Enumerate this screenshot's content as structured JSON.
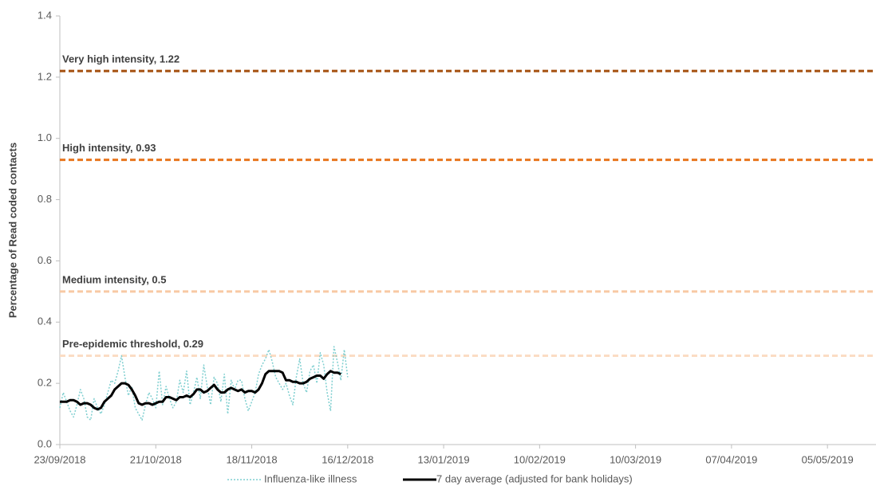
{
  "chart_data": {
    "type": "line",
    "y_label": "Percentage of Read coded contacts",
    "ylim": [
      0,
      1.4
    ],
    "yticks": [
      {
        "value": 0,
        "label": "0.0"
      },
      0.2,
      0.4,
      0.6,
      0.8,
      {
        "value": 1,
        "label": "1.0"
      },
      1.2,
      1.4
    ],
    "xlim": [
      "2018-09-23",
      "2019-05-18"
    ],
    "xticks": [
      {
        "value": "2018-09-23",
        "label": "23/09/2018"
      },
      {
        "value": "2018-10-21",
        "label": "21/10/2018"
      },
      {
        "value": "2018-11-18",
        "label": "18/11/2018"
      },
      {
        "value": "2018-12-16",
        "label": "16/12/2018"
      },
      {
        "value": "2019-01-13",
        "label": "13/01/2019"
      },
      {
        "value": "2019-02-10",
        "label": "10/02/2019"
      },
      {
        "value": "2019-03-10",
        "label": "10/03/2019"
      },
      {
        "value": "2019-04-07",
        "label": "07/04/2019"
      },
      {
        "value": "2019-05-05",
        "label": "05/05/2019"
      }
    ],
    "thresholds": [
      {
        "label": "Very high intensity, 1.22",
        "value": 1.22,
        "color": "#a5500f"
      },
      {
        "label": "High intensity, 0.93",
        "value": 0.93,
        "color": "#e8761e"
      },
      {
        "label": "Medium intensity, 0.5",
        "value": 0.5,
        "color": "#f8c9a4"
      },
      {
        "label": "Pre-epidemic threshold, 0.29",
        "value": 0.29,
        "color": "#fbdcc4"
      }
    ],
    "x": [
      "2018-09-23",
      "2018-09-24",
      "2018-09-25",
      "2018-09-26",
      "2018-09-27",
      "2018-09-28",
      "2018-09-29",
      "2018-09-30",
      "2018-10-01",
      "2018-10-02",
      "2018-10-03",
      "2018-10-04",
      "2018-10-05",
      "2018-10-06",
      "2018-10-07",
      "2018-10-08",
      "2018-10-09",
      "2018-10-10",
      "2018-10-11",
      "2018-10-12",
      "2018-10-13",
      "2018-10-14",
      "2018-10-15",
      "2018-10-16",
      "2018-10-17",
      "2018-10-18",
      "2018-10-19",
      "2018-10-20",
      "2018-10-21",
      "2018-10-22",
      "2018-10-23",
      "2018-10-24",
      "2018-10-25",
      "2018-10-26",
      "2018-10-27",
      "2018-10-28",
      "2018-10-29",
      "2018-10-30",
      "2018-10-31",
      "2018-11-01",
      "2018-11-02",
      "2018-11-03",
      "2018-11-04",
      "2018-11-05",
      "2018-11-06",
      "2018-11-07",
      "2018-11-08",
      "2018-11-09",
      "2018-11-10",
      "2018-11-11",
      "2018-11-12",
      "2018-11-13",
      "2018-11-14",
      "2018-11-15",
      "2018-11-16",
      "2018-11-17",
      "2018-11-18",
      "2018-11-19",
      "2018-11-20",
      "2018-11-21",
      "2018-11-22",
      "2018-11-23",
      "2018-11-24",
      "2018-11-25",
      "2018-11-26",
      "2018-11-27",
      "2018-11-28",
      "2018-11-29",
      "2018-11-30",
      "2018-12-01",
      "2018-12-02",
      "2018-12-03",
      "2018-12-04",
      "2018-12-05",
      "2018-12-06",
      "2018-12-07",
      "2018-12-08",
      "2018-12-09",
      "2018-12-10",
      "2018-12-11",
      "2018-12-12",
      "2018-12-13",
      "2018-12-14",
      "2018-12-15",
      "2018-12-16"
    ],
    "series": [
      {
        "name": "Influenza-like illness",
        "color": "#7fcfd0",
        "dash": true,
        "values": [
          0.12,
          0.17,
          0.14,
          0.11,
          0.09,
          0.13,
          0.18,
          0.15,
          0.09,
          0.08,
          0.15,
          0.12,
          0.1,
          0.13,
          0.17,
          0.21,
          0.2,
          0.24,
          0.29,
          0.22,
          0.16,
          0.19,
          0.12,
          0.1,
          0.08,
          0.13,
          0.17,
          0.15,
          0.12,
          0.24,
          0.13,
          0.19,
          0.15,
          0.12,
          0.14,
          0.21,
          0.17,
          0.24,
          0.13,
          0.17,
          0.22,
          0.15,
          0.26,
          0.19,
          0.13,
          0.22,
          0.2,
          0.14,
          0.23,
          0.1,
          0.21,
          0.18,
          0.21,
          0.21,
          0.15,
          0.11,
          0.14,
          0.17,
          0.23,
          0.26,
          0.28,
          0.31,
          0.27,
          0.22,
          0.2,
          0.18,
          0.2,
          0.16,
          0.13,
          0.22,
          0.28,
          0.2,
          0.17,
          0.24,
          0.26,
          0.2,
          0.3,
          0.26,
          0.17,
          0.11,
          0.32,
          0.27,
          0.21,
          0.31,
          0.22
        ]
      },
      {
        "name": "7 day average (adjusted for bank holidays)",
        "color": "#000000",
        "dash": false,
        "values": [
          0.14,
          0.14,
          0.14,
          0.145,
          0.145,
          0.14,
          0.13,
          0.135,
          0.135,
          0.13,
          0.12,
          0.115,
          0.12,
          0.14,
          0.15,
          0.16,
          0.18,
          0.19,
          0.2,
          0.2,
          0.195,
          0.18,
          0.16,
          0.135,
          0.13,
          0.135,
          0.135,
          0.13,
          0.135,
          0.14,
          0.14,
          0.155,
          0.155,
          0.15,
          0.145,
          0.155,
          0.155,
          0.16,
          0.155,
          0.165,
          0.18,
          0.18,
          0.17,
          0.175,
          0.185,
          0.195,
          0.18,
          0.17,
          0.17,
          0.18,
          0.185,
          0.18,
          0.175,
          0.18,
          0.17,
          0.175,
          0.175,
          0.17,
          0.18,
          0.2,
          0.23,
          0.24,
          0.24,
          0.24,
          0.24,
          0.235,
          0.21,
          0.21,
          0.205,
          0.205,
          0.2,
          0.2,
          0.205,
          0.215,
          0.22,
          0.225,
          0.225,
          0.215,
          0.23,
          0.24,
          0.235,
          0.235,
          0.23,
          null,
          null
        ]
      }
    ]
  }
}
